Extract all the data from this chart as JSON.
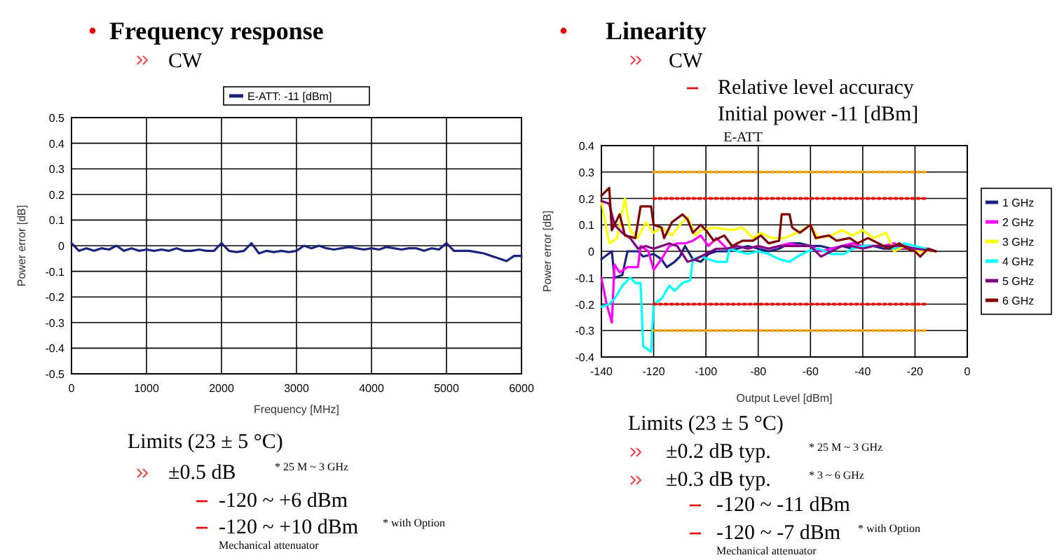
{
  "chart_data": [
    {
      "type": "line",
      "title": "Frequency response",
      "subtitle": "CW",
      "xlabel": "Frequency [MHz]",
      "ylabel": "Power error [dB]",
      "xlim": [
        0,
        6000
      ],
      "xticks": [
        0,
        1000,
        2000,
        3000,
        4000,
        5000,
        6000
      ],
      "ylim": [
        -0.5,
        0.5
      ],
      "yticks": [
        -0.5,
        -0.4,
        -0.3,
        -0.2,
        -0.1,
        0,
        0.1,
        0.2,
        0.3,
        0.4,
        0.5
      ],
      "grid": true,
      "legend": "top",
      "marker": "none",
      "x": [
        0,
        100,
        200,
        300,
        400,
        500,
        600,
        700,
        800,
        900,
        1000,
        1100,
        1200,
        1300,
        1400,
        1500,
        1600,
        1700,
        1800,
        1900,
        2000,
        2100,
        2200,
        2300,
        2400,
        2500,
        2600,
        2700,
        2800,
        2900,
        3000,
        3100,
        3200,
        3300,
        3400,
        3500,
        3600,
        3700,
        3800,
        3900,
        4000,
        4100,
        4200,
        4300,
        4400,
        4500,
        4600,
        4700,
        4800,
        4900,
        5000,
        5100,
        5200,
        5300,
        5400,
        5500,
        5600,
        5700,
        5800,
        5900,
        6000
      ],
      "series": [
        {
          "name": "E-ATT: -11 [dBm]",
          "color": "#1a237e",
          "values": [
            0.01,
            -0.02,
            -0.01,
            -0.02,
            -0.01,
            -0.015,
            0,
            -0.02,
            -0.01,
            -0.02,
            -0.015,
            -0.02,
            -0.015,
            -0.02,
            -0.01,
            -0.02,
            -0.02,
            -0.015,
            -0.02,
            -0.02,
            0.01,
            -0.02,
            -0.025,
            -0.02,
            0.01,
            -0.03,
            -0.02,
            -0.025,
            -0.02,
            -0.025,
            -0.02,
            0,
            -0.01,
            0,
            -0.01,
            -0.015,
            -0.01,
            -0.005,
            -0.01,
            -0.015,
            -0.01,
            -0.015,
            -0.005,
            -0.01,
            -0.015,
            -0.01,
            -0.01,
            -0.02,
            -0.01,
            -0.015,
            0.01,
            -0.02,
            -0.02,
            -0.02,
            -0.025,
            -0.03,
            -0.04,
            -0.05,
            -0.06,
            -0.04,
            -0.04
          ]
        }
      ],
      "annotations": [
        "Limits (23 ± 5 °C)",
        "±0.5 dB",
        "* 25 M ~ 3 GHz",
        "-120 ~ +6 dBm",
        "-120 ~ +10 dBm",
        "* with Option",
        "Mechanical attenuator"
      ]
    },
    {
      "type": "line",
      "title": "Linearity",
      "subtitle": "CW",
      "xlabel": "Output Level [dBm]",
      "ylabel": "Power error [dB]",
      "xlim": [
        -140,
        0
      ],
      "xticks": [
        -140,
        -120,
        -100,
        -80,
        -60,
        -40,
        -20,
        0
      ],
      "ylim": [
        -0.4,
        0.4
      ],
      "yticks": [
        -0.4,
        -0.3,
        -0.2,
        -0.1,
        0,
        0.1,
        0.2,
        0.3,
        0.4
      ],
      "grid": true,
      "legend": "right",
      "marker": "none",
      "series": [
        {
          "name": "1 GHz",
          "color": "#1a237e",
          "x": [
            -140,
            -136,
            -135,
            -132,
            -130,
            -126,
            -124,
            -120,
            -117,
            -115,
            -112,
            -110,
            -108,
            -105,
            -102,
            -99,
            -96,
            -92,
            -88,
            -84,
            -80,
            -76,
            -72,
            -68,
            -64,
            -60,
            -56,
            -52,
            -48,
            -44,
            -40,
            -36,
            -32,
            -28,
            -24,
            -20,
            -15,
            -12
          ],
          "values": [
            -0.03,
            0,
            -0.1,
            -0.09,
            0,
            0,
            -0.02,
            -0.01,
            -0.03,
            -0.06,
            -0.04,
            -0.02,
            0.02,
            -0.03,
            -0.04,
            -0.01,
            0,
            0,
            0.01,
            0.02,
            0.01,
            0,
            0.01,
            0.03,
            0.03,
            0.02,
            0.02,
            0.01,
            0.02,
            0.01,
            0.02,
            0.02,
            0.01,
            0.01,
            0.01,
            0.01,
            0.01,
            0
          ]
        },
        {
          "name": "2 GHz",
          "color": "#ff00ff",
          "x": [
            -140,
            -138,
            -136,
            -135,
            -133,
            -130,
            -126,
            -125,
            -122,
            -120,
            -117,
            -114,
            -111,
            -108,
            -105,
            -102,
            -99,
            -96,
            -92,
            -88,
            -84,
            -80,
            -76,
            -72,
            -68,
            -64,
            -60,
            -56,
            -52,
            -48,
            -44,
            -40,
            -36,
            -32,
            -28,
            -24,
            -20,
            -12
          ],
          "values": [
            -0.1,
            -0.2,
            -0.27,
            -0.05,
            -0.08,
            -0.06,
            -0.06,
            0.02,
            0,
            -0.07,
            -0.03,
            0.02,
            0.03,
            0.03,
            0.04,
            0.06,
            0.02,
            0.05,
            0.01,
            0.02,
            0.01,
            0.02,
            0.01,
            0.02,
            0.03,
            0.02,
            0.02,
            0,
            0.01,
            0.02,
            0.03,
            0.02,
            0.02,
            0.02,
            0.03,
            0.01,
            0.01,
            0
          ]
        },
        {
          "name": "3 GHz",
          "color": "#ffff00",
          "x": [
            -140,
            -137,
            -134,
            -131,
            -129,
            -126,
            -123,
            -120,
            -117,
            -113,
            -110,
            -107,
            -104,
            -102,
            -97,
            -90,
            -86,
            -82,
            -79,
            -75,
            -70,
            -65,
            -60,
            -57,
            -52,
            -48,
            -44,
            -40,
            -36,
            -31,
            -28,
            -24,
            -20,
            -12
          ],
          "values": [
            0.19,
            0.03,
            0.05,
            0.2,
            0.08,
            0.05,
            0.11,
            0.07,
            0.09,
            0.06,
            0.1,
            0.13,
            0.06,
            0.08,
            0.09,
            0.08,
            0.09,
            0.05,
            0.07,
            0.05,
            0.05,
            0.07,
            0.1,
            0.05,
            0.06,
            0.08,
            0.06,
            0.08,
            0.05,
            0.07,
            0,
            0.02,
            0,
            0
          ]
        },
        {
          "name": "4 GHz",
          "color": "#00ffff",
          "x": [
            -140,
            -137,
            -135,
            -132,
            -129,
            -127,
            -125,
            -124,
            -121,
            -120,
            -117,
            -114,
            -112,
            -109,
            -106,
            -105,
            -102,
            -99,
            -96,
            -92,
            -91,
            -88,
            -84,
            -80,
            -76,
            -72,
            -68,
            -65,
            -61,
            -57,
            -52,
            -47,
            -44,
            -40,
            -36,
            -32,
            -28,
            -24,
            -20,
            -12
          ],
          "values": [
            -0.21,
            -0.2,
            -0.18,
            -0.13,
            -0.1,
            -0.12,
            -0.12,
            -0.36,
            -0.38,
            -0.2,
            -0.18,
            -0.13,
            -0.15,
            -0.12,
            -0.11,
            -0.03,
            -0.02,
            -0.03,
            -0.04,
            -0.04,
            0.01,
            0,
            -0.01,
            0,
            -0.01,
            -0.03,
            -0.04,
            -0.02,
            0,
            0.01,
            -0.01,
            -0.01,
            0.01,
            0.02,
            0.02,
            0.02,
            0.01,
            0.03,
            0.02,
            0
          ]
        },
        {
          "name": "5 GHz",
          "color": "#800080",
          "x": [
            -140,
            -137,
            -135,
            -132,
            -129,
            -126,
            -123,
            -120,
            -117,
            -114,
            -111,
            -107,
            -104,
            -100,
            -96,
            -92,
            -88,
            -84,
            -80,
            -76,
            -72,
            -68,
            -64,
            -60,
            -56,
            -52,
            -48,
            -44,
            -40,
            -36,
            -32,
            -28,
            -24,
            -20,
            -12
          ],
          "values": [
            0.19,
            0.18,
            0.1,
            0.07,
            0.05,
            0.01,
            0.02,
            0.01,
            0.02,
            0.03,
            0.02,
            -0.04,
            -0.03,
            -0.01,
            0.01,
            0.01,
            0.02,
            0.01,
            0.02,
            0.01,
            0.02,
            0.02,
            0.02,
            0.02,
            -0.02,
            0,
            0.02,
            0.02,
            0.01,
            0.02,
            0.02,
            0.02,
            0.02,
            0.01,
            0
          ]
        },
        {
          "name": "6 GHz",
          "color": "#800000",
          "x": [
            -140,
            -137,
            -136,
            -133,
            -131,
            -127,
            -125,
            -121,
            -120,
            -117,
            -116,
            -113,
            -109,
            -107,
            -105,
            -102,
            -100,
            -97,
            -93,
            -90,
            -86,
            -82,
            -79,
            -76,
            -72,
            -71,
            -68,
            -67,
            -64,
            -60,
            -58,
            -53,
            -50,
            -45,
            -42,
            -38,
            -34,
            -30,
            -26,
            -23,
            -20,
            -18,
            -15,
            -12
          ],
          "values": [
            0.21,
            0.24,
            0.08,
            0.14,
            0.06,
            0.05,
            0.17,
            0.17,
            0.1,
            0.09,
            0.05,
            0.11,
            0.14,
            0.12,
            0.07,
            0.1,
            0.08,
            0.04,
            0.06,
            0.02,
            0.04,
            0.04,
            0.06,
            0.03,
            0.04,
            0.14,
            0.14,
            0.09,
            0.07,
            0.1,
            0.05,
            0.06,
            0.04,
            0.05,
            0.03,
            0.05,
            0.03,
            0.01,
            0.03,
            0.01,
            0,
            -0.02,
            0.01,
            0
          ]
        },
        {
          "color": "#ffa500",
          "line_style": "dotted",
          "x": [
            -120,
            -15
          ],
          "values": [
            0.3,
            0.3
          ]
        },
        {
          "color": "#ff0000",
          "line_style": "dotted",
          "x": [
            -120,
            -15
          ],
          "values": [
            0.2,
            0.2
          ]
        },
        {
          "color": "#ff0000",
          "line_style": "dotted",
          "x": [
            -120,
            -15
          ],
          "values": [
            -0.2,
            -0.2
          ]
        },
        {
          "color": "#ffa500",
          "line_style": "dotted",
          "x": [
            -120,
            -15
          ],
          "values": [
            -0.3,
            -0.3
          ]
        }
      ],
      "annotations": [
        "Relative level accuracy",
        "Initial power -11 [dBm]",
        "E-ATT",
        "Limits (23 ± 5 °C)",
        "±0.2 dB typ.",
        "* 25 M ~ 3 GHz",
        "±0.3 dB typ.",
        "* 3 ~ 6 GHz",
        "-120 ~ -11 dBm",
        "-120 ~ -7 dBm",
        "* with Option",
        "Mechanical attenuator"
      ]
    }
  ]
}
